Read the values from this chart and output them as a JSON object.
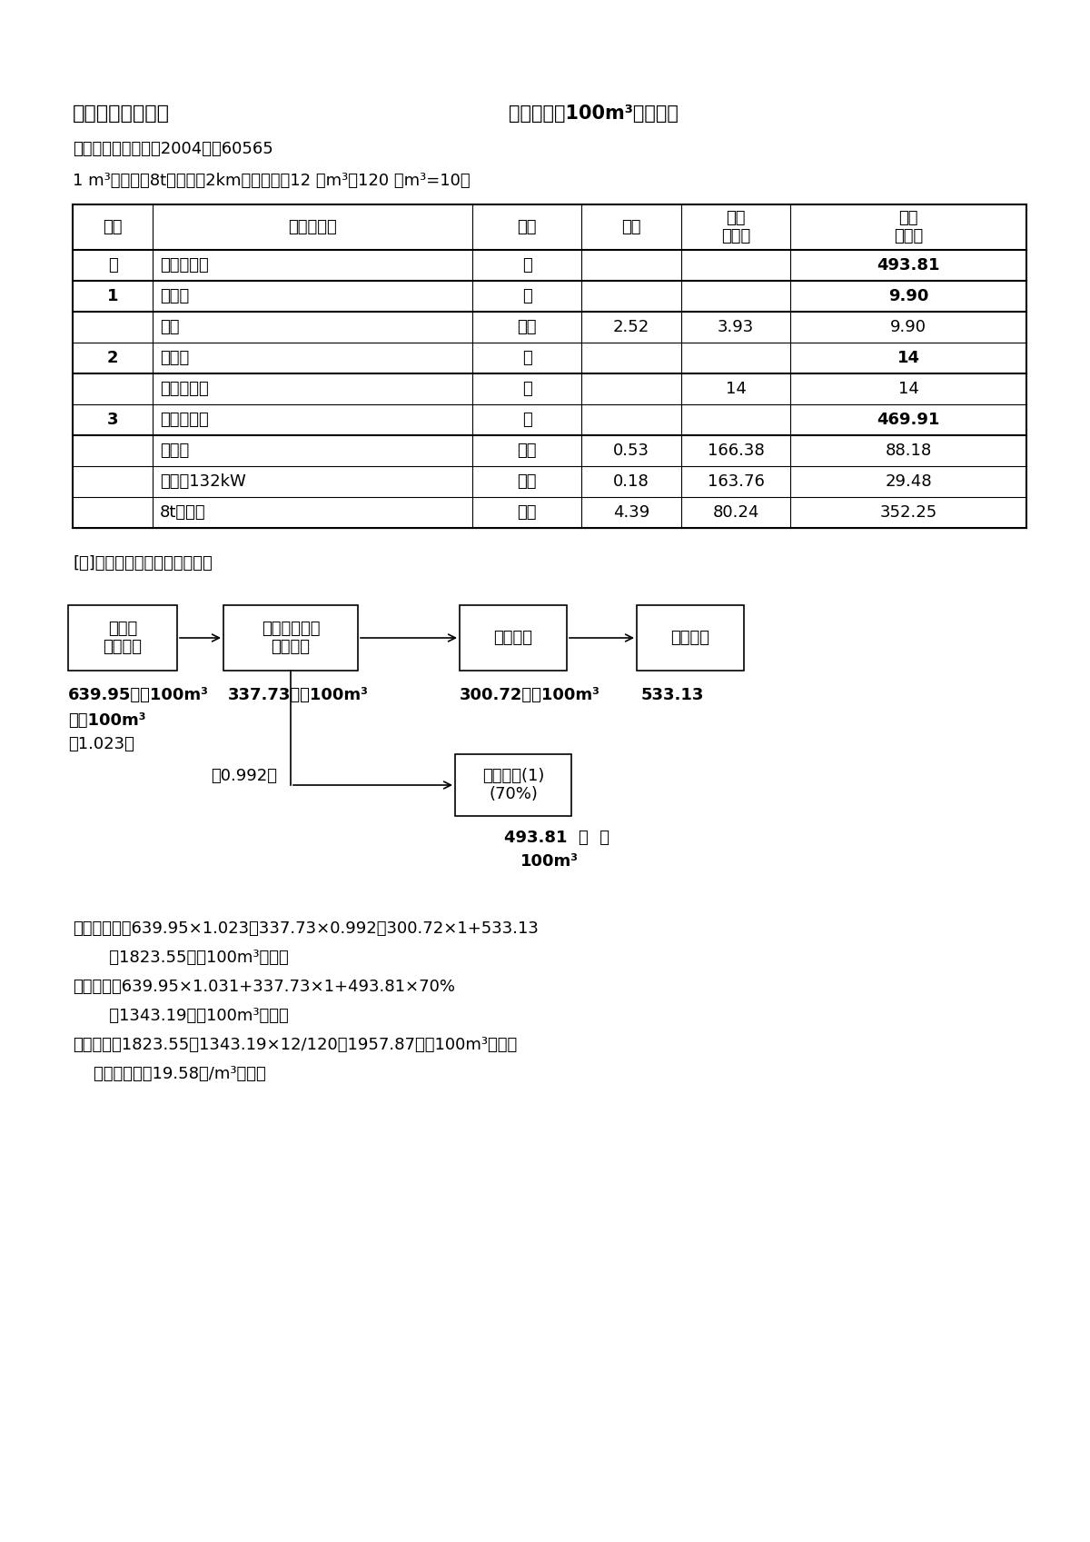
{
  "title_left": "六、级配弃料运输",
  "title_right": "定额单位：100m³成品堆方",
  "quota_name": "定额名称及编号：（2004）预60565",
  "quota_desc": "1 m³挖掘机，8t自卸车运2km，弃料摊销12 万m³／120 万m³=10％",
  "table_headers": [
    "序号",
    "名称及规格",
    "单位",
    "数量",
    "单价\n（元）",
    "合价\n（元）"
  ],
  "table_rows": [
    [
      "一",
      "基本直接费",
      "元",
      "",
      "",
      "493.81",
      true
    ],
    [
      "1",
      "人工费",
      "元",
      "",
      "",
      "9.90",
      true
    ],
    [
      "",
      "普工",
      "工时",
      "2.52",
      "3.93",
      "9.90",
      false
    ],
    [
      "2",
      "材料费",
      "元",
      "",
      "",
      "14",
      true
    ],
    [
      "",
      "零星材料费",
      "元",
      "",
      "14",
      "14",
      false
    ],
    [
      "3",
      "机械使用费",
      "元",
      "",
      "",
      "469.91",
      true
    ],
    [
      "",
      "挖掘机",
      "台时",
      "0.53",
      "166.38",
      "88.18",
      false
    ],
    [
      "",
      "推土机132kW",
      "台时",
      "0.18",
      "163.76",
      "29.48",
      false
    ],
    [
      "",
      "8t自卸车",
      "台时",
      "4.39",
      "80.24",
      "352.25",
      false
    ]
  ],
  "jie_text": "[解]：经计算各工序单价如下：",
  "sup3": "³",
  "bg_color": "#ffffff",
  "text_color": "#000000"
}
